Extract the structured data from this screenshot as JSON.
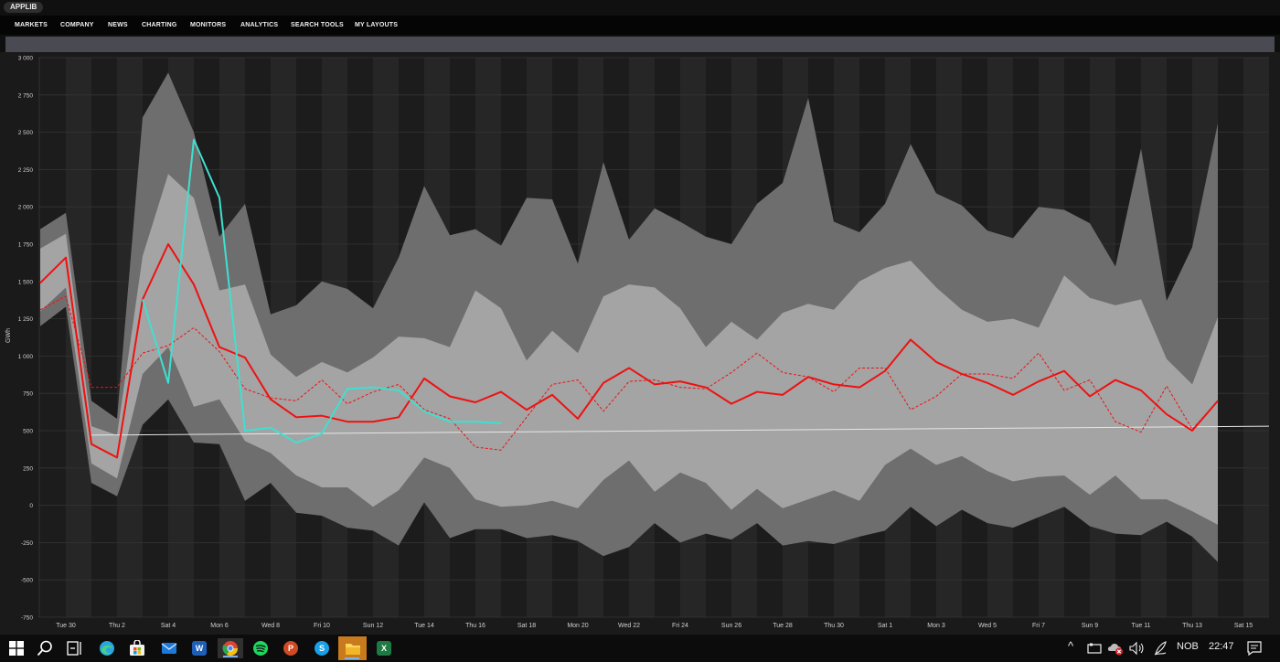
{
  "app": {
    "title": "APPLIB"
  },
  "menu": [
    "MARKETS",
    "COMPANY",
    "NEWS",
    "CHARTING",
    "MONITORS",
    "ANALYTICS",
    "SEARCH TOOLS",
    "MY LAYOUTS"
  ],
  "chart_data": {
    "type": "area",
    "ylabel": "GWh",
    "ylim": [
      -750,
      3000
    ],
    "y_ticks": [
      "3 000",
      "2 750",
      "2 500",
      "2 250",
      "2 000",
      "1 750",
      "1 500",
      "1 250",
      "1 000",
      "750",
      "500",
      "250",
      "0",
      "-250",
      "-500",
      "-750"
    ],
    "x_ticks": [
      "Tue 30",
      "Thu 2",
      "Sat 4",
      "Mon 6",
      "Wed 8",
      "Fri 10",
      "Sun 12",
      "Tue 14",
      "Thu 16",
      "Sat 18",
      "Mon 20",
      "Wed 22",
      "Fri 24",
      "Sun 26",
      "Tue 28",
      "Thu 30",
      "Sat 1",
      "Mon 3",
      "Wed 5",
      "Fri 7",
      "Sun 9",
      "Tue 11",
      "Thu 13",
      "Sat 15"
    ],
    "x_start_label": "Tue 30",
    "colors": {
      "outer_band": "#6e6e6e",
      "inner_band": "#a4a4a4",
      "red": "#ee1111",
      "cyan": "#3fe0d0",
      "white": "#e6e6e6"
    },
    "outer_upper": [
      1850,
      1960,
      700,
      580,
      2600,
      2900,
      2500,
      1800,
      2020,
      1280,
      1340,
      1500,
      1450,
      1320,
      1660,
      2140,
      1810,
      1850,
      1740,
      2060,
      2050,
      1620,
      2300,
      1780,
      1990,
      1900,
      1800,
      1750,
      2020,
      2160,
      2730,
      1900,
      1830,
      2020,
      2420,
      2090,
      2010,
      1840,
      1790,
      2000,
      1980,
      1890,
      1600,
      2390,
      1370,
      1730,
      2560
    ],
    "outer_lower": [
      1200,
      1330,
      150,
      60,
      540,
      710,
      420,
      410,
      30,
      150,
      -50,
      -70,
      -150,
      -170,
      -270,
      20,
      -220,
      -160,
      -160,
      -220,
      -200,
      -240,
      -340,
      -280,
      -120,
      -250,
      -190,
      -230,
      -120,
      -270,
      -240,
      -260,
      -210,
      -170,
      -10,
      -140,
      -30,
      -120,
      -150,
      -80,
      -10,
      -140,
      -190,
      -200,
      -110,
      -210,
      -380
    ],
    "inner_upper": [
      1720,
      1820,
      530,
      470,
      1670,
      2220,
      2060,
      1440,
      1480,
      1010,
      860,
      960,
      890,
      990,
      1130,
      1120,
      1060,
      1440,
      1320,
      970,
      1170,
      1020,
      1400,
      1480,
      1460,
      1320,
      1060,
      1230,
      1110,
      1290,
      1350,
      1310,
      1500,
      1590,
      1640,
      1460,
      1310,
      1230,
      1250,
      1190,
      1540,
      1390,
      1340,
      1380,
      980,
      810,
      1260
    ],
    "inner_lower": [
      1300,
      1460,
      280,
      180,
      880,
      1060,
      660,
      710,
      430,
      350,
      200,
      120,
      120,
      -10,
      100,
      320,
      250,
      40,
      -10,
      0,
      30,
      -20,
      170,
      300,
      90,
      220,
      150,
      -30,
      110,
      -20,
      40,
      100,
      30,
      270,
      380,
      270,
      330,
      230,
      160,
      190,
      200,
      70,
      200,
      40,
      40,
      -40,
      -130
    ],
    "series": [
      {
        "name": "",
        "style": "solid",
        "color": "#ee1111",
        "values": [
          1490,
          1660,
          410,
          320,
          1380,
          1750,
          1480,
          1060,
          990,
          710,
          590,
          600,
          560,
          560,
          590,
          850,
          730,
          690,
          760,
          640,
          740,
          580,
          820,
          920,
          810,
          830,
          790,
          680,
          760,
          740,
          860,
          810,
          790,
          900,
          1110,
          960,
          880,
          820,
          740,
          830,
          900,
          730,
          840,
          770,
          610,
          500,
          700
        ]
      },
      {
        "name": "",
        "style": "dashed",
        "color": "#ee1111",
        "values": [
          1310,
          1400,
          790,
          790,
          1020,
          1070,
          1190,
          1030,
          780,
          720,
          700,
          840,
          680,
          760,
          810,
          640,
          580,
          390,
          370,
          590,
          810,
          840,
          630,
          830,
          840,
          790,
          780,
          890,
          1020,
          890,
          860,
          760,
          920,
          920,
          640,
          730,
          880,
          880,
          850,
          1020,
          770,
          840,
          560,
          490,
          800,
          510,
          700
        ]
      },
      {
        "name": "",
        "style": "solid",
        "color": "#3fe0d0",
        "values": [
          null,
          null,
          null,
          null,
          1380,
          820,
          2450,
          2060,
          500,
          520,
          420,
          480,
          780,
          790,
          770,
          630,
          560,
          560,
          550
        ]
      }
    ],
    "baseline": {
      "name": "",
      "start": 470,
      "end": 530,
      "color": "#e6e6e6"
    }
  },
  "taskbar": {
    "apps": [
      "start-icon",
      "search-icon",
      "task-view-icon",
      "edge-icon",
      "store-icon",
      "mail-icon",
      "word-icon",
      "chrome-icon",
      "spotify-icon",
      "powerpoint-icon",
      "skype-icon",
      "file-explorer-icon",
      "excel-icon"
    ],
    "word_letter": "W",
    "ppt_letter": "P",
    "skype_letter": "S",
    "excel_letter": "X",
    "language": "NOB",
    "time": "22:47"
  }
}
